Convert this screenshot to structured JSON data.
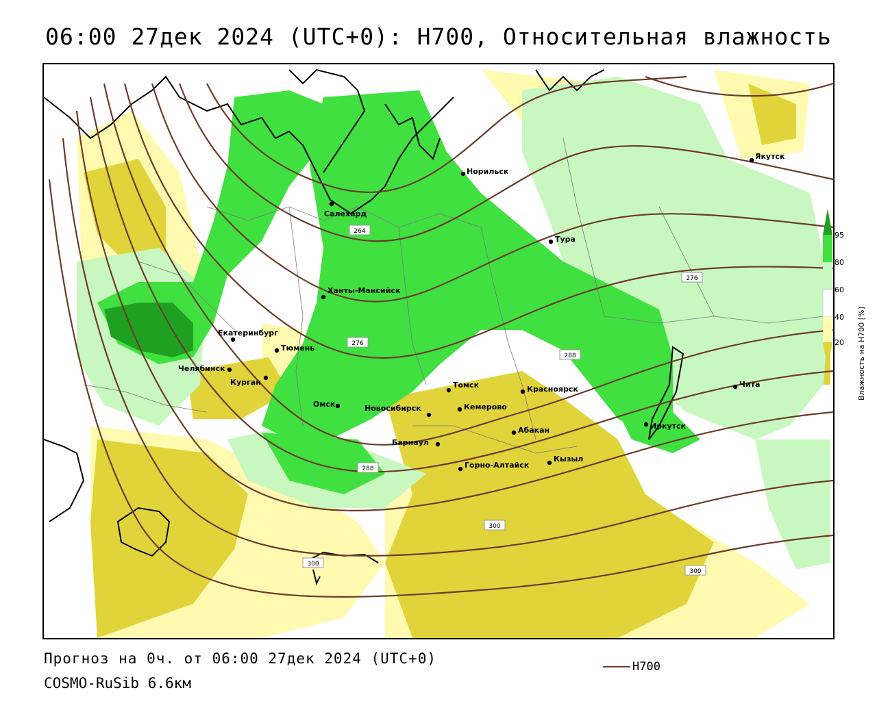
{
  "title": "06:00 27дек 2024 (UTC+0): H700, Относительная влажность",
  "footer": {
    "forecast": "Прогноз на 0ч. от 06:00 27дек 2024 (UTC+0)",
    "model": "COSMO-RuSib 6.6км"
  },
  "legend": {
    "line_label": "H700",
    "line_color": "#6b3b2a",
    "colorbar_title": "Влажность на H700 [%]",
    "colorbar_ticks": [
      "95",
      "80",
      "60",
      "40",
      "20"
    ],
    "colors": {
      "very_dry": "#e0d43a",
      "dry": "#fffab0",
      "neutral": "#ffffff",
      "moist": "#c8f7c0",
      "wet": "#40e040",
      "very_wet": "#20a020"
    }
  },
  "cities": [
    {
      "name": "Якутск"
    },
    {
      "name": "Норильск"
    },
    {
      "name": "Салехард"
    },
    {
      "name": "Тура"
    },
    {
      "name": "Ханты-Мансийск"
    },
    {
      "name": "Екатеринбург"
    },
    {
      "name": "Тюмень"
    },
    {
      "name": "Челябинск"
    },
    {
      "name": "Курган"
    },
    {
      "name": "Омск"
    },
    {
      "name": "Новосибирск"
    },
    {
      "name": "Томск"
    },
    {
      "name": "Кемерово"
    },
    {
      "name": "Красноярск"
    },
    {
      "name": "Барнаул"
    },
    {
      "name": "Абакан"
    },
    {
      "name": "Горно-Алтайск"
    },
    {
      "name": "Кызыл"
    },
    {
      "name": "Иркутск"
    },
    {
      "name": "Чита"
    }
  ],
  "contour_labels": [
    "264",
    "276",
    "276",
    "288",
    "288",
    "300",
    "300",
    "300"
  ]
}
